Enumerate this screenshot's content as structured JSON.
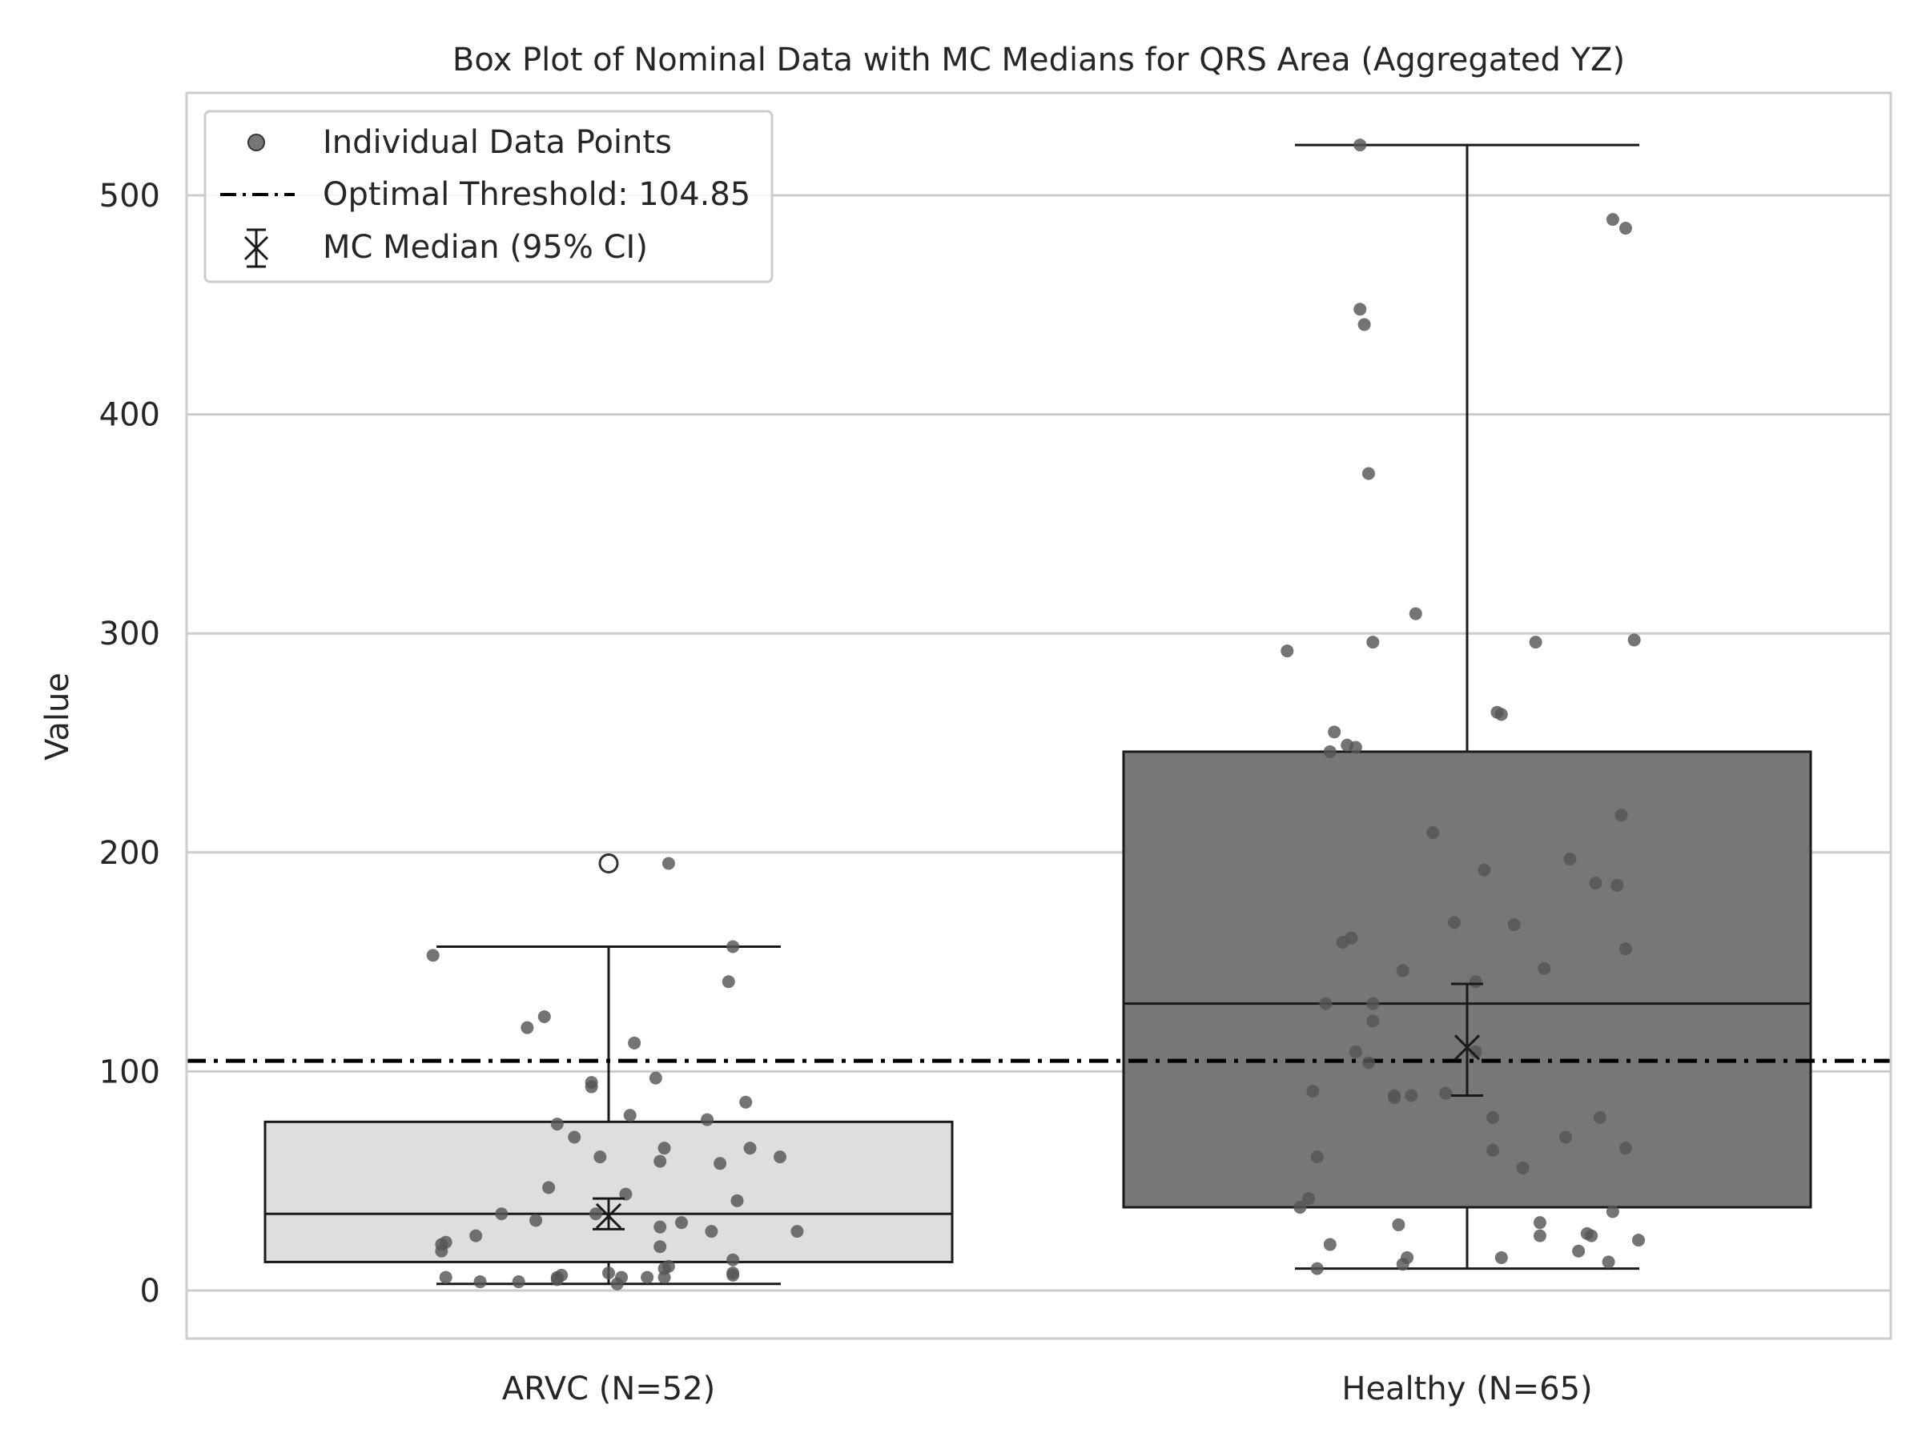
{
  "chart_data": {
    "type": "box",
    "title": "Box Plot of Nominal Data with MC Medians for QRS Area (Aggregated YZ)",
    "xlabel": "",
    "ylabel": "Value",
    "ylim": [
      -22,
      547
    ],
    "yticks": [
      0,
      100,
      200,
      300,
      400,
      500
    ],
    "grid": "horizontal",
    "legend_position": "top-left",
    "legend": {
      "points_label": "Individual Data Points",
      "threshold_label": "Optimal Threshold: 104.85",
      "median_label": "MC Median (95% CI)"
    },
    "threshold": 104.85,
    "colors": {
      "grid": "#cccccc",
      "frame": "#cccccc",
      "box_outline": "#1a1a1a",
      "point": "#555555",
      "threshold": "#000000"
    },
    "groups": [
      {
        "category": "ARVC (N=52)",
        "fill": "#dedede",
        "q1": 13,
        "median": 35,
        "q3": 77,
        "whisker_low": 3,
        "whisker_high": 157,
        "outliers": [
          195
        ],
        "mc_median": 34,
        "mc_ci": [
          28,
          42
        ],
        "points": [
          [
            0.14,
            195
          ],
          [
            -0.41,
            153
          ],
          [
            0.29,
            157
          ],
          [
            0.28,
            141
          ],
          [
            -0.15,
            125
          ],
          [
            -0.19,
            120
          ],
          [
            0.06,
            113
          ],
          [
            -0.04,
            95
          ],
          [
            -0.04,
            93
          ],
          [
            0.11,
            97
          ],
          [
            0.32,
            86
          ],
          [
            0.23,
            78
          ],
          [
            -0.12,
            76
          ],
          [
            0.05,
            80
          ],
          [
            -0.08,
            70
          ],
          [
            0.33,
            65
          ],
          [
            0.13,
            65
          ],
          [
            0.4,
            61
          ],
          [
            -0.02,
            61
          ],
          [
            0.12,
            59
          ],
          [
            0.26,
            58
          ],
          [
            0.04,
            44
          ],
          [
            -0.14,
            47
          ],
          [
            0.3,
            41
          ],
          [
            -0.25,
            35
          ],
          [
            -0.03,
            35
          ],
          [
            -0.17,
            32
          ],
          [
            0.17,
            31
          ],
          [
            0.12,
            29
          ],
          [
            0.24,
            27
          ],
          [
            0.44,
            27
          ],
          [
            -0.31,
            25
          ],
          [
            -0.38,
            22
          ],
          [
            -0.39,
            21
          ],
          [
            0.12,
            20
          ],
          [
            -0.39,
            18
          ],
          [
            0.29,
            14
          ],
          [
            0.14,
            11
          ],
          [
            0.13,
            10
          ],
          [
            0.29,
            8
          ],
          [
            0.29,
            7
          ],
          [
            0.0,
            8
          ],
          [
            -0.11,
            7
          ],
          [
            -0.12,
            6
          ],
          [
            0.03,
            6
          ],
          [
            0.13,
            6
          ],
          [
            0.09,
            6
          ],
          [
            -0.38,
            6
          ],
          [
            -0.3,
            4
          ],
          [
            -0.21,
            4
          ],
          [
            0.02,
            3
          ],
          [
            -0.12,
            5
          ]
        ]
      },
      {
        "category": "Healthy (N=65)",
        "fill": "#777777",
        "q1": 38,
        "median": 131,
        "q3": 246,
        "whisker_low": 10,
        "whisker_high": 523,
        "outliers": [],
        "mc_median": 111,
        "mc_ci": [
          89,
          140
        ],
        "points": [
          [
            -0.25,
            523
          ],
          [
            0.34,
            489
          ],
          [
            0.37,
            485
          ],
          [
            -0.25,
            448
          ],
          [
            -0.24,
            441
          ],
          [
            -0.23,
            373
          ],
          [
            -0.12,
            309
          ],
          [
            -0.42,
            292
          ],
          [
            -0.22,
            296
          ],
          [
            0.16,
            296
          ],
          [
            0.39,
            297
          ],
          [
            0.07,
            264
          ],
          [
            0.08,
            263
          ],
          [
            -0.31,
            255
          ],
          [
            -0.28,
            249
          ],
          [
            -0.26,
            248
          ],
          [
            -0.32,
            246
          ],
          [
            0.36,
            217
          ],
          [
            -0.08,
            209
          ],
          [
            0.24,
            197
          ],
          [
            0.04,
            192
          ],
          [
            0.3,
            186
          ],
          [
            0.35,
            185
          ],
          [
            -0.03,
            168
          ],
          [
            0.11,
            167
          ],
          [
            -0.27,
            161
          ],
          [
            -0.29,
            159
          ],
          [
            0.37,
            156
          ],
          [
            0.18,
            147
          ],
          [
            -0.15,
            146
          ],
          [
            0.02,
            141
          ],
          [
            -0.33,
            131
          ],
          [
            -0.22,
            131
          ],
          [
            -0.22,
            123
          ],
          [
            0.02,
            109
          ],
          [
            -0.26,
            109
          ],
          [
            -0.23,
            104
          ],
          [
            -0.17,
            89
          ],
          [
            -0.36,
            91
          ],
          [
            -0.17,
            88
          ],
          [
            -0.13,
            89
          ],
          [
            -0.05,
            90
          ],
          [
            0.06,
            79
          ],
          [
            0.31,
            79
          ],
          [
            0.23,
            70
          ],
          [
            0.37,
            65
          ],
          [
            0.06,
            64
          ],
          [
            -0.35,
            61
          ],
          [
            0.13,
            56
          ],
          [
            -0.37,
            42
          ],
          [
            -0.39,
            38
          ],
          [
            0.34,
            36
          ],
          [
            -0.16,
            30
          ],
          [
            0.17,
            31
          ],
          [
            0.28,
            26
          ],
          [
            0.17,
            25
          ],
          [
            0.29,
            25
          ],
          [
            0.4,
            23
          ],
          [
            -0.32,
            21
          ],
          [
            0.26,
            18
          ],
          [
            -0.14,
            15
          ],
          [
            0.08,
            15
          ],
          [
            -0.15,
            12
          ],
          [
            0.33,
            13
          ],
          [
            -0.35,
            10
          ]
        ]
      }
    ]
  }
}
